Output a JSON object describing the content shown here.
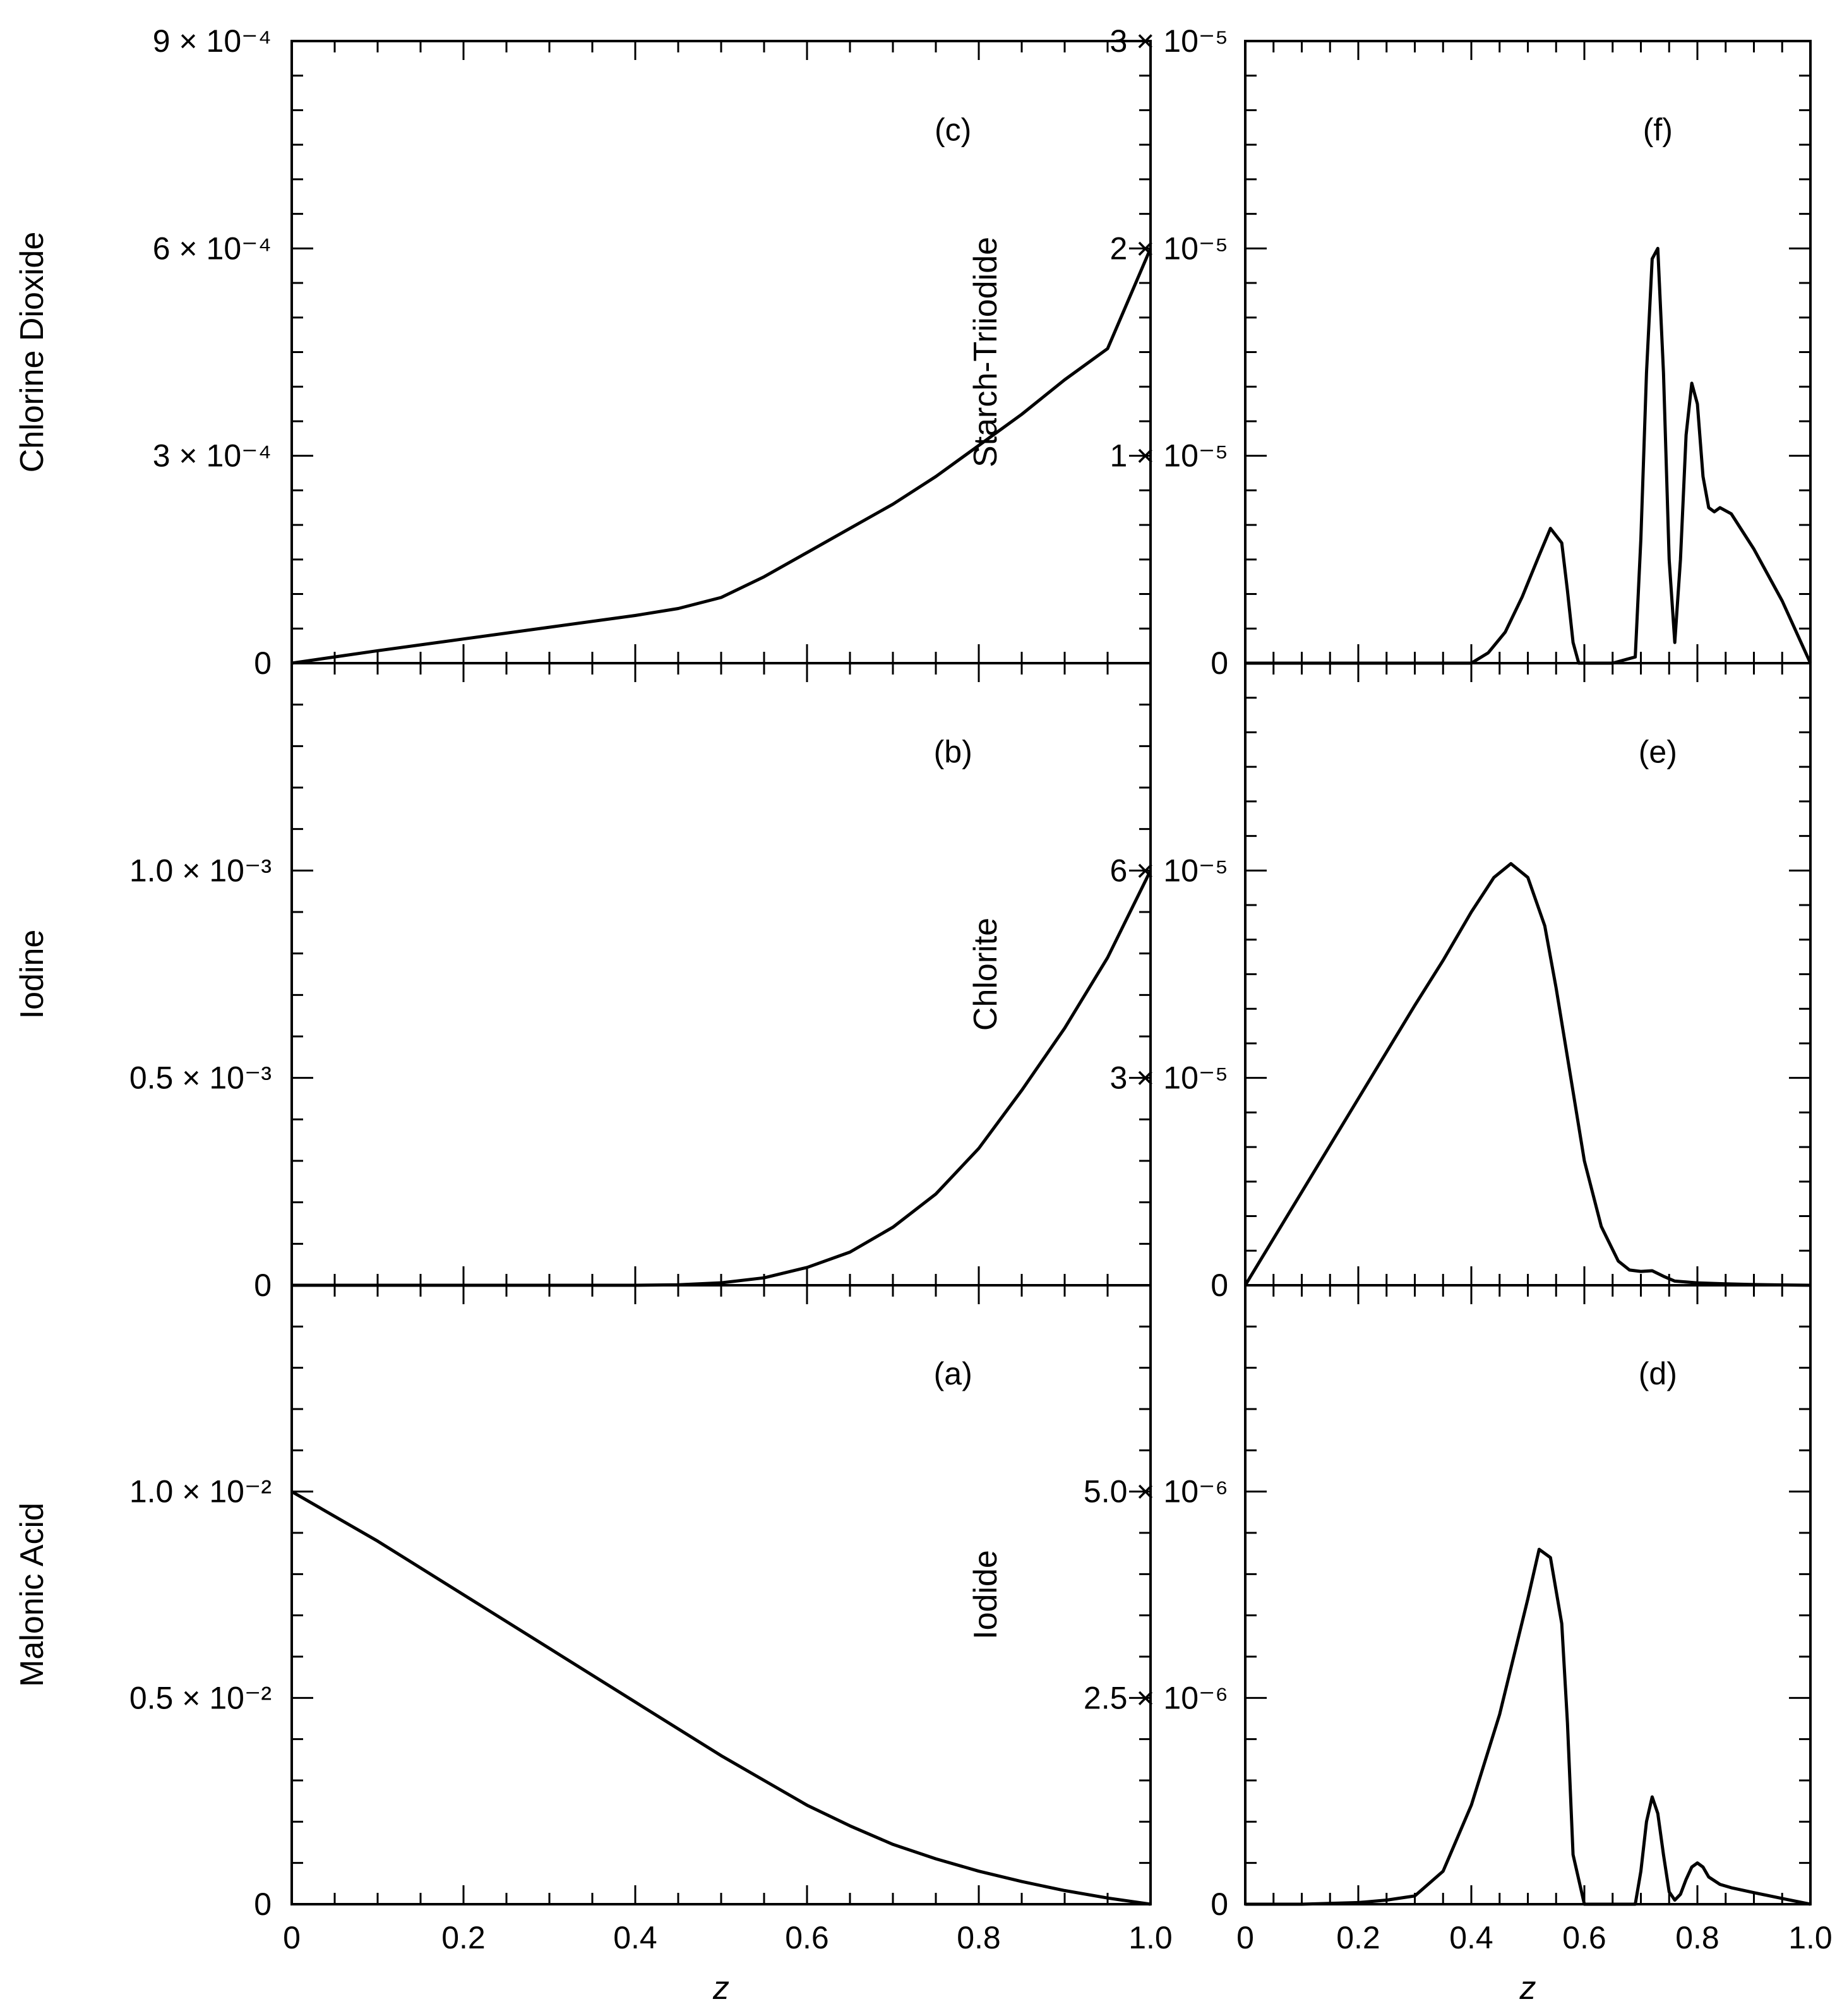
{
  "chart_data": [
    {
      "type": "line",
      "panel": "(a)",
      "ylabel": "Malonic Acid",
      "xlabel": "z",
      "xlim": [
        0,
        1.0
      ],
      "ylim": [
        0,
        0.015
      ],
      "yticks": [
        {
          "value": 0,
          "label": "0"
        },
        {
          "value": 0.005,
          "label": "0.5 × 10⁻²"
        },
        {
          "value": 0.01,
          "label": "1.0 × 10⁻²"
        }
      ],
      "x": [
        0,
        0.05,
        0.1,
        0.2,
        0.3,
        0.4,
        0.5,
        0.55,
        0.6,
        0.65,
        0.7,
        0.75,
        0.8,
        0.85,
        0.9,
        0.95,
        1.0
      ],
      "y": [
        0.01,
        0.0094,
        0.0088,
        0.0075,
        0.0062,
        0.0049,
        0.0036,
        0.003,
        0.0024,
        0.0019,
        0.00145,
        0.0011,
        0.0008,
        0.00055,
        0.00033,
        0.00015,
        0.0
      ]
    },
    {
      "type": "line",
      "panel": "(b)",
      "ylabel": "Iodine",
      "xlabel": "z",
      "xlim": [
        0,
        1.0
      ],
      "ylim": [
        0,
        0.0015
      ],
      "yticks": [
        {
          "value": 0,
          "label": "0"
        },
        {
          "value": 0.0005,
          "label": "0.5 × 10⁻³"
        },
        {
          "value": 0.001,
          "label": "1.0 × 10⁻³"
        }
      ],
      "x": [
        0,
        0.1,
        0.2,
        0.3,
        0.4,
        0.45,
        0.5,
        0.55,
        0.6,
        0.65,
        0.7,
        0.75,
        0.8,
        0.85,
        0.9,
        0.95,
        1.0
      ],
      "y": [
        0,
        0,
        0,
        0,
        0,
        1e-06,
        6e-06,
        1.8e-05,
        4.3e-05,
        8e-05,
        0.00014,
        0.00022,
        0.00033,
        0.00047,
        0.00062,
        0.00079,
        0.001
      ]
    },
    {
      "type": "line",
      "panel": "(c)",
      "ylabel": "Chlorine Dioxide",
      "xlabel": "z",
      "xlim": [
        0,
        1.0
      ],
      "ylim": [
        0,
        0.0009
      ],
      "yticks": [
        {
          "value": 0,
          "label": "0"
        },
        {
          "value": 0.0003,
          "label": "3 × 10⁻⁴"
        },
        {
          "value": 0.0006,
          "label": "6 × 10⁻⁴"
        },
        {
          "value": 0.0009,
          "label": "9 × 10⁻⁴"
        }
      ],
      "x": [
        0,
        0.1,
        0.2,
        0.3,
        0.4,
        0.45,
        0.5,
        0.55,
        0.6,
        0.65,
        0.7,
        0.75,
        0.8,
        0.85,
        0.9,
        0.95,
        1.0
      ],
      "y": [
        0,
        1.8e-05,
        3.5e-05,
        5.2e-05,
        6.9e-05,
        7.9e-05,
        9.5e-05,
        0.000125,
        0.00016,
        0.000195,
        0.00023,
        0.00027,
        0.000315,
        0.00036,
        0.00041,
        0.000455,
        0.0006
      ]
    },
    {
      "type": "line",
      "panel": "(d)",
      "ylabel": "Iodide",
      "xlabel": "z",
      "xlim": [
        0,
        1.0
      ],
      "ylim": [
        0,
        7.5e-06
      ],
      "yticks": [
        {
          "value": 0,
          "label": "0"
        },
        {
          "value": 2.5e-06,
          "label": "2.5 × 10⁻⁶"
        },
        {
          "value": 5e-06,
          "label": "5.0 × 10⁻⁶"
        }
      ],
      "x": [
        0,
        0.1,
        0.2,
        0.25,
        0.3,
        0.35,
        0.4,
        0.45,
        0.5,
        0.52,
        0.54,
        0.56,
        0.57,
        0.58,
        0.6,
        0.65,
        0.69,
        0.7,
        0.71,
        0.72,
        0.73,
        0.74,
        0.75,
        0.76,
        0.77,
        0.78,
        0.79,
        0.8,
        0.81,
        0.82,
        0.84,
        0.86,
        0.9,
        0.95,
        1.0
      ],
      "y": [
        0,
        0,
        2e-08,
        5e-08,
        1e-07,
        4e-07,
        1.2e-06,
        2.3e-06,
        3.7e-06,
        4.3e-06,
        4.2e-06,
        3.4e-06,
        2.2e-06,
        6e-07,
        0,
        0,
        0,
        4e-07,
        1e-06,
        1.3e-06,
        1.1e-06,
        6e-07,
        1.5e-07,
        5e-08,
        1.2e-07,
        3e-07,
        4.5e-07,
        5e-07,
        4.5e-07,
        3.3e-07,
        2.4e-07,
        2e-07,
        1.4e-07,
        7e-08,
        0
      ]
    },
    {
      "type": "line",
      "panel": "(e)",
      "ylabel": "Chlorite",
      "xlabel": "z",
      "xlim": [
        0,
        1.0
      ],
      "ylim": [
        0,
        9e-05
      ],
      "yticks": [
        {
          "value": 0,
          "label": "0"
        },
        {
          "value": 3e-05,
          "label": "3 × 10⁻⁵"
        },
        {
          "value": 6e-05,
          "label": "6 × 10⁻⁵"
        }
      ],
      "x": [
        0,
        0.1,
        0.2,
        0.3,
        0.35,
        0.4,
        0.44,
        0.47,
        0.5,
        0.53,
        0.55,
        0.57,
        0.6,
        0.63,
        0.66,
        0.68,
        0.7,
        0.72,
        0.74,
        0.76,
        0.8,
        0.85,
        0.9,
        0.95,
        1.0
      ],
      "y": [
        0,
        1.35e-05,
        2.7e-05,
        4.05e-05,
        4.7e-05,
        5.4e-05,
        5.9e-05,
        6.1e-05,
        5.9e-05,
        5.2e-05,
        4.3e-05,
        3.3e-05,
        1.8e-05,
        8.5e-06,
        3.5e-06,
        2.2e-06,
        2e-06,
        2.1e-06,
        1.3e-06,
        6e-07,
        3.5e-07,
        2e-07,
        1e-07,
        5e-08,
        0
      ]
    },
    {
      "type": "line",
      "panel": "(f)",
      "ylabel": "Starch-Triiodide",
      "xlabel": "z",
      "xlim": [
        0,
        1.0
      ],
      "ylim": [
        0,
        3e-05
      ],
      "yticks": [
        {
          "value": 0,
          "label": "0"
        },
        {
          "value": 1e-05,
          "label": "1 × 10⁻⁵"
        },
        {
          "value": 2e-05,
          "label": "2 × 10⁻⁵"
        },
        {
          "value": 3e-05,
          "label": "3 × 10⁻⁵"
        }
      ],
      "x": [
        0,
        0.3,
        0.4,
        0.43,
        0.46,
        0.49,
        0.52,
        0.54,
        0.56,
        0.57,
        0.58,
        0.59,
        0.6,
        0.65,
        0.69,
        0.7,
        0.71,
        0.72,
        0.73,
        0.74,
        0.75,
        0.76,
        0.77,
        0.78,
        0.79,
        0.8,
        0.81,
        0.82,
        0.83,
        0.84,
        0.86,
        0.9,
        0.95,
        1.0
      ],
      "y": [
        0,
        0,
        0,
        5e-07,
        1.5e-06,
        3.2e-06,
        5.2e-06,
        6.5e-06,
        5.8e-06,
        3.5e-06,
        1e-06,
        0,
        0,
        0,
        3e-07,
        6e-06,
        1.4e-05,
        1.95e-05,
        2e-05,
        1.4e-05,
        5e-06,
        1e-06,
        5e-06,
        1.1e-05,
        1.35e-05,
        1.25e-05,
        9e-06,
        7.5e-06,
        7.3e-06,
        7.5e-06,
        7.2e-06,
        5.5e-06,
        3e-06,
        0
      ]
    }
  ],
  "panel_labels": {
    "a": "(a)",
    "b": "(b)",
    "c": "(c)",
    "d": "(d)",
    "e": "(e)",
    "f": "(f)"
  },
  "x_tick_labels": [
    "0",
    "0.2",
    "0.4",
    "0.6",
    "0.8",
    "1.0"
  ],
  "x_axis_title": "z"
}
